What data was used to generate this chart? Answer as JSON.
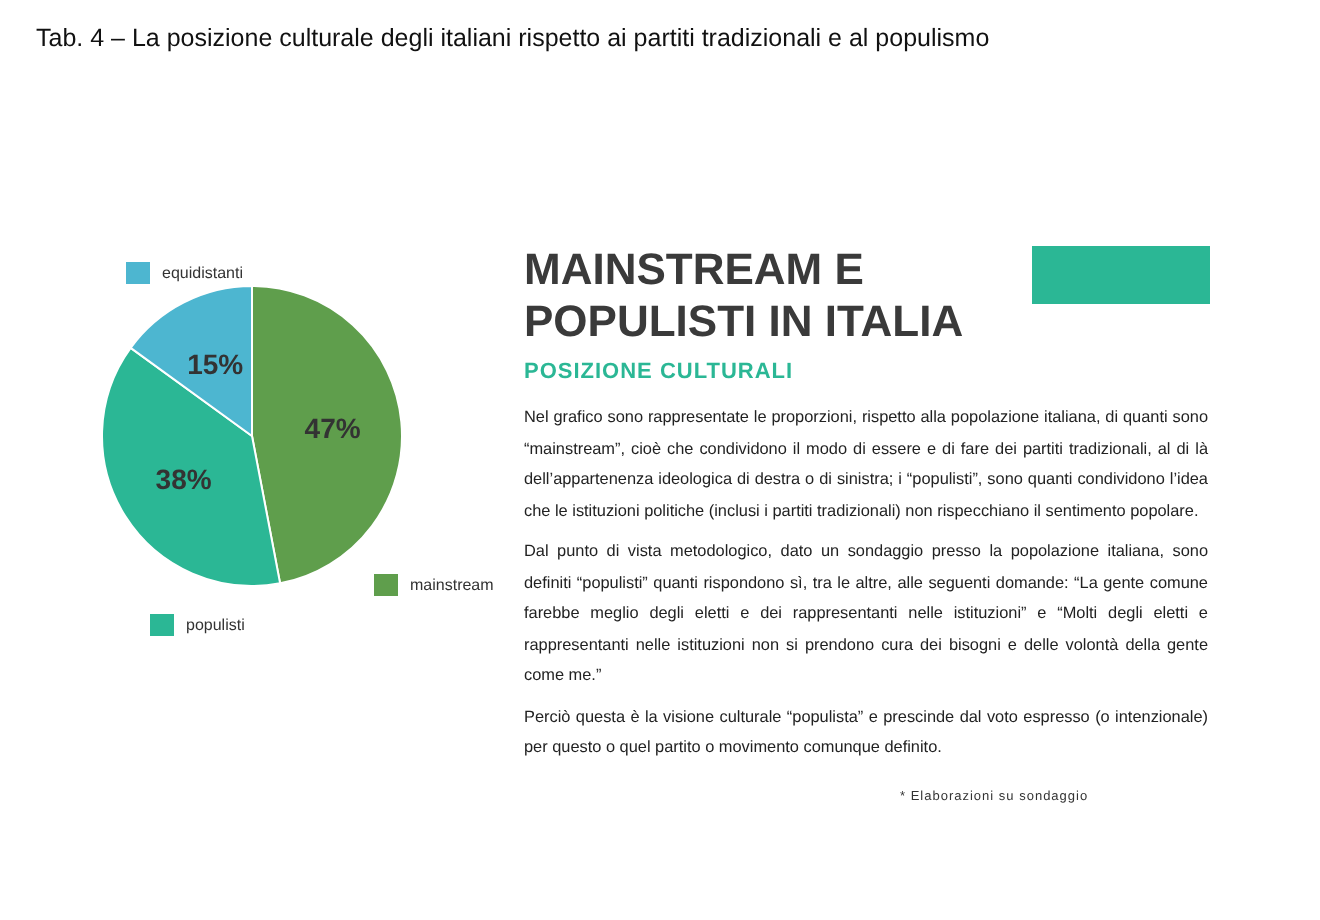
{
  "chart_data": {
    "type": "pie",
    "title": "Tab. 4 – La posizione culturale degli italiani rispetto ai partiti tradizionali e al populismo",
    "subtitle": "MAINSTREAM E POPULISTI IN ITALIA",
    "categories": [
      "mainstream",
      "populisti",
      "equidistanti"
    ],
    "values": [
      47,
      38,
      15
    ],
    "colors": [
      "#5f9e4c",
      "#2bb795",
      "#4db6d0"
    ],
    "value_labels": [
      "47%",
      "38%",
      "15%"
    ],
    "legend": "bottom right",
    "annotations": [
      "POSIZIONE CULTURALI",
      "Nel grafico sono rappresentate le proporzioni, rispetto alla popolazione italiana, di quanti sono “mainstream”, cioè che condividono il modo di essere e di fare dei partiti tradizionali, al di là dell’appartenenza ideologica di destra o di sinistra; i “populisti”, sono quanti condividono l’idea che le istituzioni politiche (inclusi i partiti tradizionali) non rispecchiano il sentimento popolare.",
      "Dal punto di vista metodologico, dato un sondaggio presso la popolazione italiana, sono definiti “populisti” quanti rispondono sì, tra le altre, alle seguenti domande: “La gente comune farebbe meglio degli eletti e dei rappresentanti nelle istituzioni” e “Molti degli eletti e rappresentanti nelle istituzioni non si prendono cura dei bisogni e delle volontà della gente come me.”",
      "Perciò questa è la visione culturale “populista” e prescinde dal voto espresso (o intenzionale) per questo o quel partito o movimento comunque definito.",
      "* Elaborazioni su sondaggio"
    ]
  }
}
